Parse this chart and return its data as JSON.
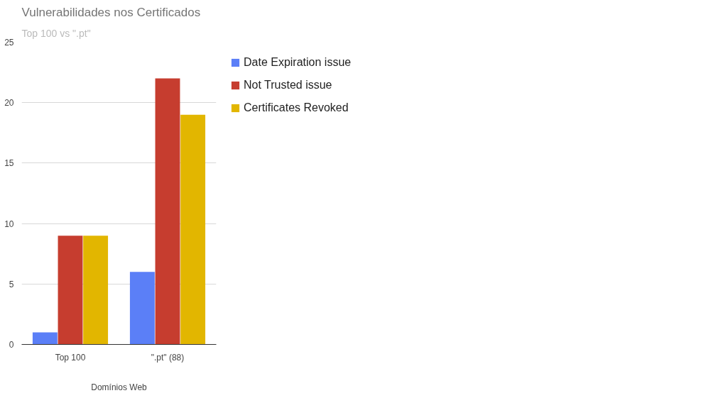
{
  "chart_data": {
    "type": "bar",
    "title": "Vulnerabilidades nos Certificados",
    "subtitle": "Top 100 vs \".pt\"",
    "xlabel": "Domínios Web",
    "categories": [
      "Top 100",
      "\".pt\" (88)"
    ],
    "series": [
      {
        "name": "Date Expiration issue",
        "color": "#5b7ff7",
        "values": [
          1,
          6
        ]
      },
      {
        "name": "Not Trusted issue",
        "color": "#c63d2f",
        "values": [
          9,
          22
        ]
      },
      {
        "name": "Certificates Revoked",
        "color": "#e2b600",
        "values": [
          9,
          19
        ]
      }
    ],
    "ylim": [
      0,
      25
    ],
    "yticks": [
      0,
      5,
      10,
      15,
      20,
      25
    ],
    "grid": "y",
    "legend": "right"
  }
}
